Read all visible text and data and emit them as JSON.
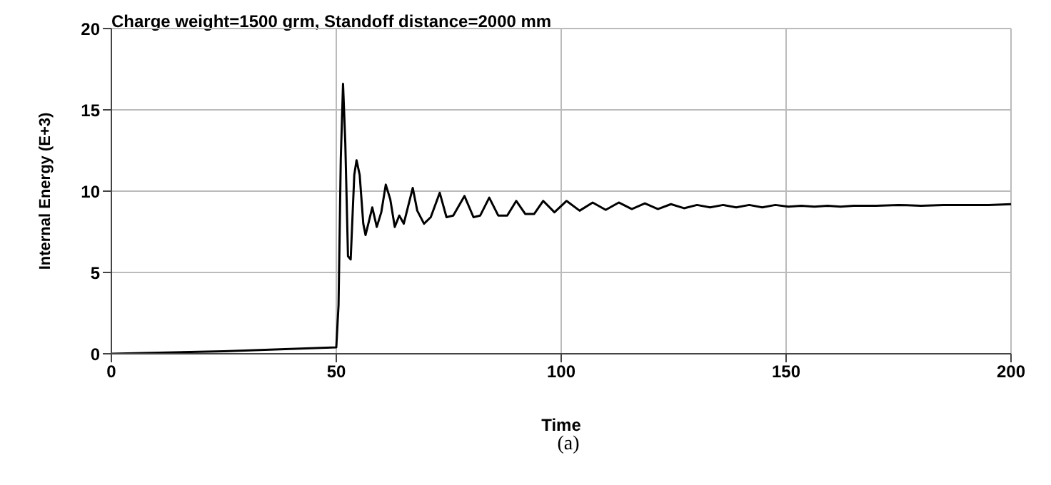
{
  "chart_data": {
    "type": "line",
    "title": "Charge weight=1500 grm, Standoff distance=2000 mm",
    "xlabel": "Time",
    "ylabel": "Internal Energy (E+3)",
    "annotations": [
      "(a)"
    ],
    "x": [
      0,
      25,
      50,
      50.5,
      51,
      51.5,
      52,
      52.6,
      53.2,
      54,
      54.5,
      55.2,
      56,
      56.5,
      57.3,
      58,
      59,
      60,
      61,
      62,
      63,
      64,
      65,
      67,
      68,
      69.5,
      71,
      73,
      74.5,
      76,
      78.5,
      80.5,
      82,
      84,
      86,
      88,
      90,
      92,
      94,
      96,
      98.5,
      101.2,
      104.1,
      107,
      109.9,
      112.8,
      115.7,
      118.6,
      121.5,
      124.4,
      127.3,
      130.2,
      133.1,
      136,
      138.9,
      141.8,
      144.7,
      147.6,
      150.5,
      153.4,
      156.3,
      159.2,
      162.1,
      165,
      170,
      175,
      180,
      185,
      190,
      195,
      200
    ],
    "series": [
      {
        "color": "#000000",
        "values": [
          0,
          0.15,
          0.4,
          3,
          12,
          16.6,
          13,
          6,
          5.8,
          11,
          11.9,
          11,
          8,
          7.3,
          8.2,
          9,
          7.8,
          8.7,
          10.4,
          9.5,
          7.8,
          8.5,
          8,
          10.2,
          8.8,
          8,
          8.4,
          9.9,
          8.4,
          8.5,
          9.7,
          8.4,
          8.5,
          9.6,
          8.5,
          8.5,
          9.4,
          8.6,
          8.6,
          9.4,
          8.7,
          9.4,
          8.8,
          9.3,
          8.85,
          9.3,
          8.9,
          9.25,
          8.9,
          9.2,
          8.95,
          9.15,
          9,
          9.15,
          9,
          9.15,
          9,
          9.15,
          9.05,
          9.1,
          9.05,
          9.1,
          9.05,
          9.1,
          9.1,
          9.15,
          9.1,
          9.15,
          9.15,
          9.15,
          9.2
        ]
      }
    ],
    "xlim": [
      0,
      200
    ],
    "xticks": [
      0,
      50,
      100,
      150,
      200
    ],
    "ylim": [
      0,
      20
    ],
    "yticks": [
      0,
      5,
      10,
      15,
      20
    ],
    "grid": true,
    "marker": "none",
    "line_style": "solid"
  }
}
